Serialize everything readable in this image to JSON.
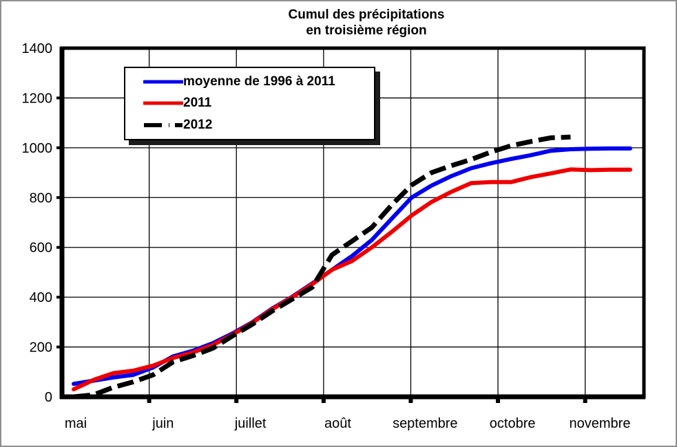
{
  "chart_data": {
    "type": "line",
    "title_line1": "Cumul des précipitations",
    "title_line2": "en troisième région",
    "x_axis": {
      "month_labels": [
        "mai",
        "juin",
        "juillet",
        "août",
        "septembre",
        "octobre",
        "novembre"
      ]
    },
    "y_axis": {
      "min": 0,
      "max": 1400,
      "step": 200,
      "tick_labels": [
        "0",
        "200",
        "400",
        "600",
        "800",
        "1000",
        "1200",
        "1400"
      ]
    },
    "grid": "on",
    "legend_position": "top-left",
    "series": [
      {
        "name": "moyenne de 1996 à 2011",
        "color": "#0000ee",
        "style": "solid",
        "values": [
          52,
          65,
          78,
          88,
          118,
          162,
          185,
          215,
          255,
          300,
          355,
          402,
          455,
          510,
          565,
          630,
          715,
          800,
          848,
          886,
          918,
          938,
          955,
          970,
          988,
          994,
          996,
          997,
          997
        ]
      },
      {
        "name": "2011",
        "color": "#ee0000",
        "style": "solid",
        "values": [
          30,
          68,
          95,
          105,
          125,
          156,
          178,
          208,
          250,
          298,
          352,
          400,
          452,
          510,
          545,
          600,
          662,
          728,
          782,
          823,
          858,
          862,
          862,
          882,
          897,
          913,
          910,
          912,
          912
        ]
      },
      {
        "name": "2012",
        "color": "#000000",
        "style": "dashed",
        "values": [
          0,
          8,
          38,
          60,
          88,
          140,
          165,
          195,
          245,
          292,
          345,
          392,
          440,
          570,
          625,
          680,
          770,
          850,
          900,
          928,
          953,
          983,
          1008,
          1025,
          1040,
          1043
        ]
      }
    ]
  }
}
